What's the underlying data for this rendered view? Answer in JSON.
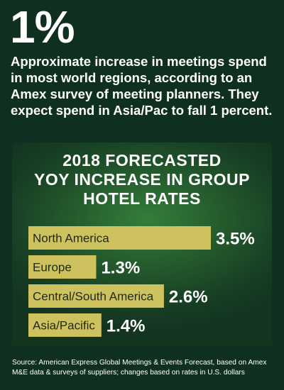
{
  "headline": {
    "stat": "1%",
    "description": "Approximate increase in meetings spend in most world regions, according to an Amex survey of meeting planners. They expect spend in Asia/Pac to fall 1 percent."
  },
  "chart_data": {
    "type": "bar",
    "orientation": "horizontal",
    "title_lines": [
      "2018 FORECASTED",
      "YOY INCREASE IN GROUP",
      "HOTEL RATES"
    ],
    "categories": [
      "North America",
      "Europe",
      "Central/South America",
      "Asia/Pacific"
    ],
    "values": [
      3.5,
      1.3,
      2.6,
      1.4
    ],
    "value_labels": [
      "3.5%",
      "1.3%",
      "2.6%",
      "1.4%"
    ],
    "colors": {
      "bar": "#cec25e",
      "value_text": "#ffffff",
      "panel": "#23582c"
    }
  },
  "source": "Source: American Express Global Meetings & Events Forecast, based on Amex M&E data & surveys of suppliers; changes based on rates in U.S. dollars"
}
